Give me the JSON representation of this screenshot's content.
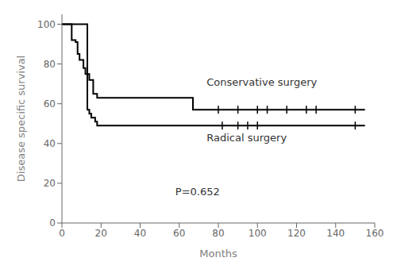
{
  "chart_data": {
    "type": "step",
    "xlabel": "Months",
    "ylabel": "Disease specific survival",
    "xlim": [
      0,
      160
    ],
    "ylim": [
      0,
      105
    ],
    "xticks": [
      0,
      20,
      40,
      60,
      80,
      100,
      120,
      140,
      160
    ],
    "yticks": [
      0,
      20,
      40,
      60,
      80,
      100
    ],
    "grid": false,
    "series": [
      {
        "color": "#000000",
        "x": [
          0,
          3,
          5,
          7,
          8,
          9,
          11,
          12,
          14,
          16,
          18,
          20,
          65,
          67,
          155
        ],
        "values": [
          100,
          100,
          92,
          91,
          85,
          82,
          78,
          75,
          72,
          65,
          63,
          63,
          63,
          57,
          57
        ],
        "censors": {
          "x": [
            80,
            90,
            100,
            105,
            115,
            125,
            130,
            150
          ],
          "y": [
            57,
            57,
            57,
            57,
            57,
            57,
            57,
            57
          ]
        }
      },
      {
        "color": "#000000",
        "x": [
          0,
          13,
          14,
          15,
          17,
          18,
          20,
          155
        ],
        "values": [
          100,
          57,
          55,
          53,
          51,
          49,
          49,
          49
        ],
        "censors": {
          "x": [
            82,
            90,
            95,
            100,
            150
          ],
          "y": [
            49,
            49,
            49,
            49,
            49
          ]
        }
      }
    ],
    "annotations": [
      {
        "text": "Conservative surgery",
        "x": 74,
        "y": 69
      },
      {
        "text": "Radical surgery",
        "x": 74,
        "y": 41
      },
      {
        "text": "P=0.652",
        "x": 58,
        "y": 14
      }
    ]
  }
}
